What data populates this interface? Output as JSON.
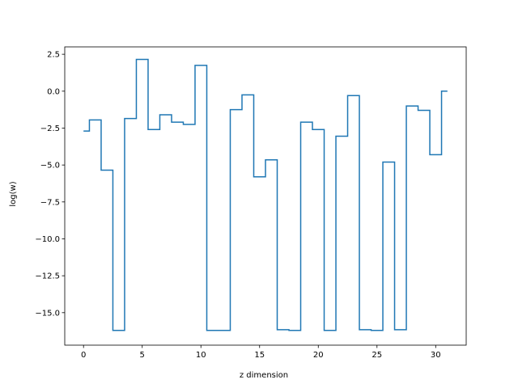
{
  "chart_data": {
    "type": "line",
    "drawstyle": "steps-mid",
    "title": "",
    "xlabel": "z dimension",
    "ylabel": "log(w)",
    "xlim": [
      -1.6,
      32.6
    ],
    "ylim": [
      -17.2,
      3.0
    ],
    "x_ticks": [
      0,
      5,
      10,
      15,
      20,
      25,
      30
    ],
    "y_ticks": [
      2.5,
      0.0,
      -2.5,
      -5.0,
      -7.5,
      -10.0,
      -12.5,
      -15.0
    ],
    "x_tick_labels": [
      "0",
      "5",
      "10",
      "15",
      "20",
      "25",
      "30"
    ],
    "y_tick_labels": [
      "2.5",
      "0.0",
      "−2.5",
      "−5.0",
      "−7.5",
      "−10.0",
      "−12.5",
      "−15.0"
    ],
    "grid": false,
    "line_color": "#1f77b4",
    "series": [
      {
        "x": [
          0,
          1,
          2,
          3,
          4,
          5,
          6,
          7,
          8,
          9,
          10,
          11,
          12,
          13,
          14,
          15,
          16,
          17,
          18,
          19,
          20,
          21,
          22,
          23,
          24,
          25,
          26,
          27,
          28,
          29,
          30,
          31
        ],
        "values": [
          -2.7,
          -1.95,
          -5.35,
          -16.2,
          -1.85,
          2.15,
          -2.6,
          -1.6,
          -2.1,
          -2.25,
          1.75,
          -16.2,
          -16.2,
          -1.25,
          -0.25,
          -5.8,
          -4.65,
          -16.15,
          -16.2,
          -2.1,
          -2.6,
          -16.2,
          -3.05,
          -0.3,
          -16.15,
          -16.2,
          -4.8,
          -16.15,
          -1.0,
          -1.3,
          -4.3,
          0.0
        ]
      }
    ]
  }
}
